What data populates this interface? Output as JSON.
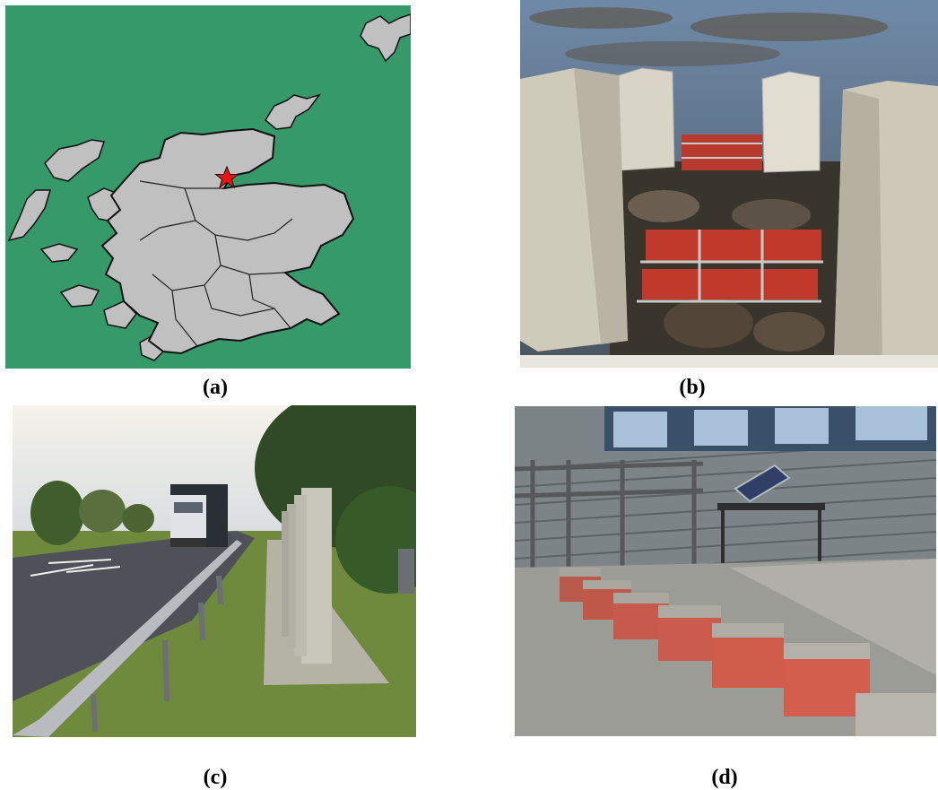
{
  "figure": {
    "panels": [
      {
        "label": "(a)",
        "subject": "map",
        "colors": {
          "sea": "#35996a",
          "land": "#c0c0c0",
          "marker": "#ee1111"
        }
      },
      {
        "label": "(b)",
        "subject": "photo"
      },
      {
        "label": "(c)",
        "subject": "photo"
      },
      {
        "label": "(d)",
        "subject": "photo"
      }
    ]
  }
}
